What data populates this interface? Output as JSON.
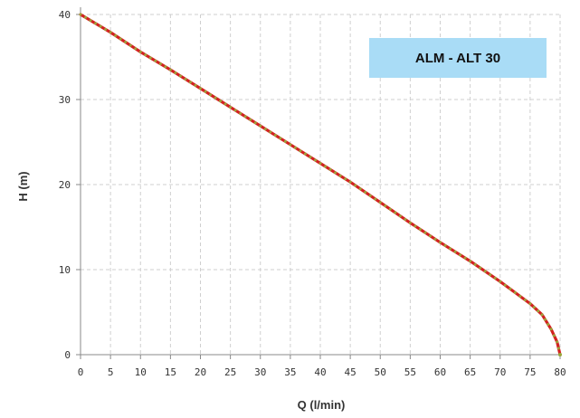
{
  "chart_data": {
    "type": "line",
    "title": "",
    "xlabel": "Q (l/min)",
    "ylabel": "H (m)",
    "xlim": [
      0,
      80
    ],
    "ylim": [
      0,
      40
    ],
    "x_ticks": [
      0,
      5,
      10,
      15,
      20,
      25,
      30,
      35,
      40,
      45,
      50,
      55,
      60,
      65,
      70,
      75,
      80
    ],
    "y_ticks": [
      0,
      10,
      20,
      30,
      40
    ],
    "x_tick_labels": [
      "0",
      "5",
      "10",
      "15",
      "20",
      "25",
      "30",
      "35",
      "40",
      "45",
      "50",
      "55",
      "60",
      "65",
      "70",
      "75",
      "80"
    ],
    "y_tick_labels": [
      "0",
      "10",
      "20",
      "30",
      "40"
    ],
    "grid": true,
    "legend_position": "top-right",
    "series": [
      {
        "name": "ALM - ALT 30",
        "color": "#d42020",
        "marker_color": "#9aa63a",
        "x": [
          0,
          5,
          10,
          15,
          20,
          25,
          30,
          35,
          40,
          45,
          50,
          55,
          60,
          65,
          70,
          72.5,
          75,
          77,
          78.5,
          79.5,
          80
        ],
        "y": [
          40,
          37.9,
          35.6,
          33.5,
          31.3,
          29.1,
          26.9,
          24.7,
          22.5,
          20.3,
          17.9,
          15.5,
          13.2,
          11.0,
          8.6,
          7.3,
          6.0,
          4.7,
          3.0,
          1.5,
          0
        ]
      }
    ]
  }
}
